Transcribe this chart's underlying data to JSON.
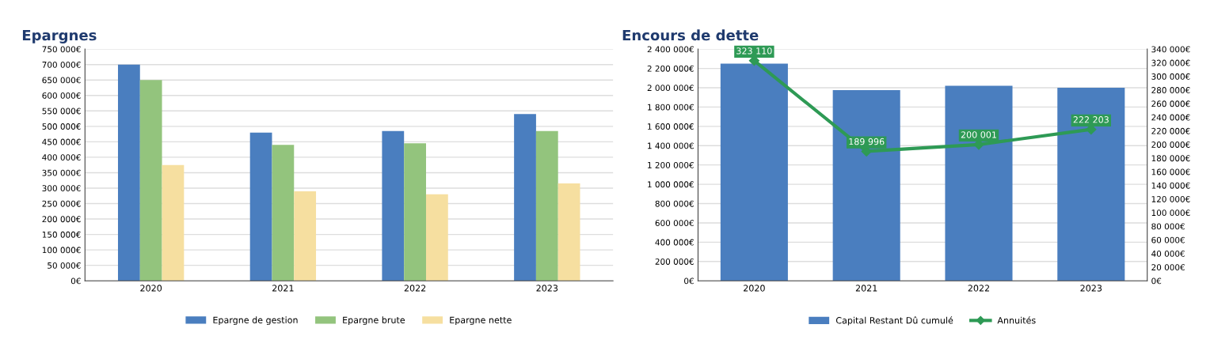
{
  "chart_data": [
    {
      "type": "bar",
      "title": "Epargnes",
      "categories": [
        "2020",
        "2021",
        "2022",
        "2023"
      ],
      "series": [
        {
          "name": "Epargne de gestion",
          "color": "#4a7ebf",
          "values": [
            700000,
            480000,
            485000,
            540000
          ]
        },
        {
          "name": "Epargne brute",
          "color": "#93c47d",
          "values": [
            650000,
            440000,
            445000,
            485000
          ]
        },
        {
          "name": "Epargne nette",
          "color": "#f6dfa0",
          "values": [
            375000,
            290000,
            280000,
            315000
          ]
        }
      ],
      "ylim": [
        0,
        750000
      ],
      "yticks": [
        {
          "value": 0,
          "label": "0€"
        },
        {
          "value": 50000,
          "label": "50 000€"
        },
        {
          "value": 100000,
          "label": "100 000€"
        },
        {
          "value": 150000,
          "label": "150 000€"
        },
        {
          "value": 200000,
          "label": "200 000€"
        },
        {
          "value": 250000,
          "label": "250 000€"
        },
        {
          "value": 300000,
          "label": "300 000€"
        },
        {
          "value": 350000,
          "label": "350 000€"
        },
        {
          "value": 400000,
          "label": "400 000€"
        },
        {
          "value": 450000,
          "label": "450 000€"
        },
        {
          "value": 500000,
          "label": "500 000€"
        },
        {
          "value": 550000,
          "label": "550 000€"
        },
        {
          "value": 600000,
          "label": "600 000€"
        },
        {
          "value": 650000,
          "label": "650 000€"
        },
        {
          "value": 700000,
          "label": "700 000€"
        },
        {
          "value": 750000,
          "label": "750 000€"
        }
      ],
      "grid": "y",
      "legend": "bottom"
    },
    {
      "type": "bar",
      "title": "Encours de dette",
      "categories": [
        "2020",
        "2021",
        "2022",
        "2023"
      ],
      "series": [
        {
          "name": "Capital Restant Dû cumulé",
          "color": "#4a7ebf",
          "values": [
            2250000,
            1975000,
            2020000,
            2000000
          ]
        },
        {
          "name": "Annuités",
          "type": "line",
          "axis": "y2",
          "color": "#2e9a55",
          "marker": "diamond",
          "values": [
            323110,
            189996,
            200001,
            222203
          ],
          "value_labels": [
            "323 110",
            "189 996",
            "200 001",
            "222 203"
          ]
        }
      ],
      "ylim": [
        0,
        2400000
      ],
      "yticks": [
        {
          "value": 0,
          "label": "0€"
        },
        {
          "value": 200000,
          "label": "200 000€"
        },
        {
          "value": 400000,
          "label": "400 000€"
        },
        {
          "value": 600000,
          "label": "600 000€"
        },
        {
          "value": 800000,
          "label": "800 000€"
        },
        {
          "value": 1000000,
          "label": "1 000 000€"
        },
        {
          "value": 1200000,
          "label": "1 200 000€"
        },
        {
          "value": 1400000,
          "label": "1 400 000€"
        },
        {
          "value": 1600000,
          "label": "1 600 000€"
        },
        {
          "value": 1800000,
          "label": "1 800 000€"
        },
        {
          "value": 2000000,
          "label": "2 000 000€"
        },
        {
          "value": 2200000,
          "label": "2 200 000€"
        },
        {
          "value": 2400000,
          "label": "2 400 000€"
        }
      ],
      "y2lim": [
        0,
        340000
      ],
      "y2ticks": [
        {
          "value": 0,
          "label": "0€"
        },
        {
          "value": 20000,
          "label": "20 000€"
        },
        {
          "value": 40000,
          "label": "40 000€"
        },
        {
          "value": 60000,
          "label": "60 000€"
        },
        {
          "value": 80000,
          "label": "80 000€"
        },
        {
          "value": 100000,
          "label": "100 000€"
        },
        {
          "value": 120000,
          "label": "120 000€"
        },
        {
          "value": 140000,
          "label": "140 000€"
        },
        {
          "value": 160000,
          "label": "160 000€"
        },
        {
          "value": 180000,
          "label": "180 000€"
        },
        {
          "value": 200000,
          "label": "200 000€"
        },
        {
          "value": 220000,
          "label": "220 000€"
        },
        {
          "value": 240000,
          "label": "240 000€"
        },
        {
          "value": 260000,
          "label": "260 000€"
        },
        {
          "value": 280000,
          "label": "280 000€"
        },
        {
          "value": 300000,
          "label": "300 000€"
        },
        {
          "value": 320000,
          "label": "320 000€"
        },
        {
          "value": 340000,
          "label": "340 000€"
        }
      ],
      "grid": "y",
      "legend": "bottom"
    }
  ]
}
